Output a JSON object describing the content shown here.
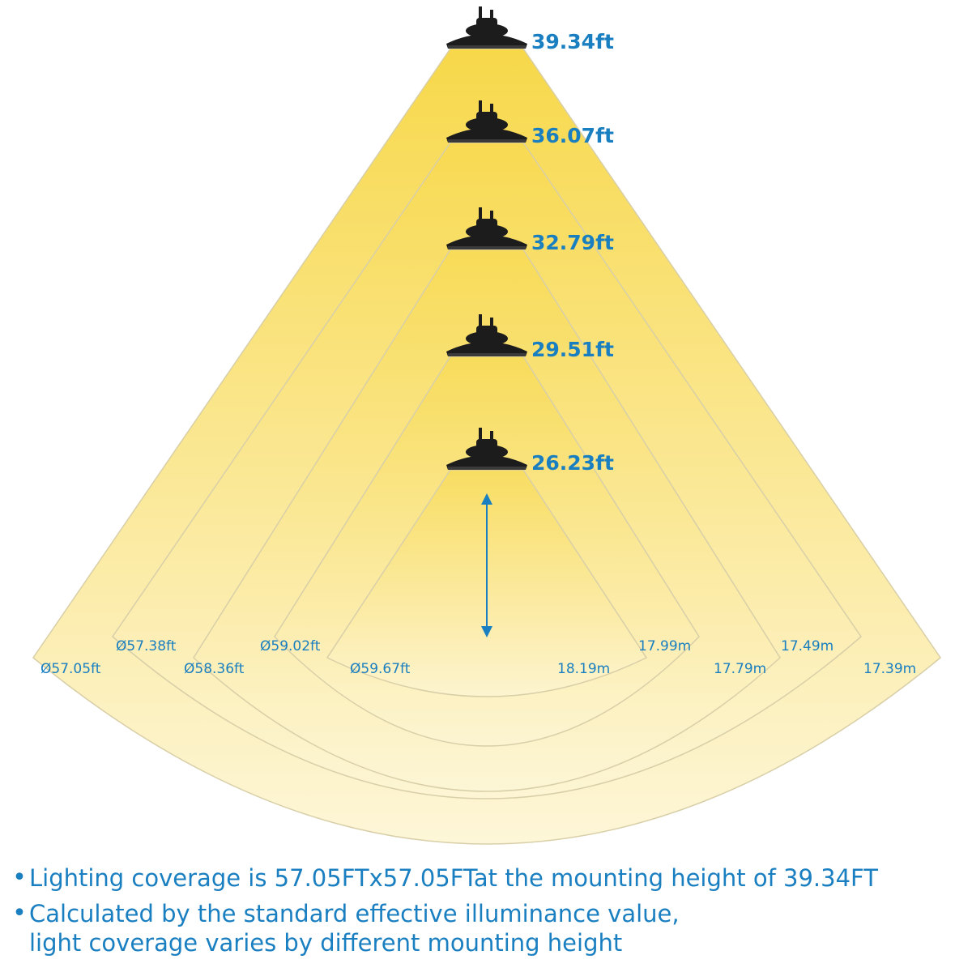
{
  "colors": {
    "beam_bright": "#f7d84a",
    "beam_pale": "#fdf6d8",
    "label": "#1a7fc1",
    "fixture": "#1c1c1c",
    "outline": "#d8cfa8"
  },
  "fixture_icon": "ufo-high-bay-light-icon",
  "lights": [
    {
      "height": "39.34ft",
      "diameter": "Ø57.05ft",
      "meters": "17.39m"
    },
    {
      "height": "36.07ft",
      "diameter": "Ø57.38ft",
      "meters": "17.49m"
    },
    {
      "height": "32.79ft",
      "diameter": "Ø58.36ft",
      "meters": "17.79m"
    },
    {
      "height": "29.51ft",
      "diameter": "Ø59.02ft",
      "meters": "17.99m"
    },
    {
      "height": "26.23ft",
      "diameter": "Ø59.67ft",
      "meters": "18.19m"
    }
  ],
  "notes": {
    "line1": "Lighting coverage is 57.05FTx57.05FTat the mounting height of 39.34FT",
    "line2a": "Calculated by the standard effective illuminance value,",
    "line2b": "light coverage varies by different mounting height",
    "bullet": "•"
  }
}
